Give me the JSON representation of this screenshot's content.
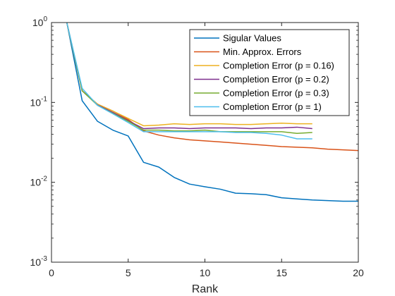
{
  "chart_data": {
    "type": "line",
    "title": "",
    "xlabel": "Rank",
    "ylabel": "",
    "xlim": [
      0,
      20
    ],
    "ylim": [
      0.001,
      1
    ],
    "yscale": "log",
    "grid": false,
    "legend_position": "top-right",
    "x_ticks": [
      0,
      5,
      10,
      15,
      20
    ],
    "y_ticks": [
      {
        "value": 0.001,
        "base": "10",
        "exp": "-3"
      },
      {
        "value": 0.01,
        "base": "10",
        "exp": "-2"
      },
      {
        "value": 0.1,
        "base": "10",
        "exp": "-1"
      },
      {
        "value": 1,
        "base": "10",
        "exp": "0"
      }
    ],
    "series": [
      {
        "name": "Sigular Values",
        "color": "#0072BD",
        "x": [
          1,
          2,
          3,
          4,
          5,
          6,
          7,
          8,
          9,
          10,
          11,
          12,
          13,
          14,
          15,
          16,
          17,
          18,
          19,
          20
        ],
        "y": [
          1.0,
          0.105,
          0.058,
          0.045,
          0.038,
          0.0178,
          0.0155,
          0.0115,
          0.0095,
          0.0088,
          0.0082,
          0.0073,
          0.0072,
          0.007,
          0.0064,
          0.0062,
          0.006,
          0.0059,
          0.0058,
          0.0058
        ]
      },
      {
        "name": "Min. Approx. Errors",
        "color": "#D95319",
        "x": [
          1,
          2,
          3,
          4,
          5,
          6,
          7,
          8,
          9,
          10,
          11,
          12,
          13,
          14,
          15,
          16,
          17,
          18,
          19,
          20
        ],
        "y": [
          1.0,
          0.14,
          0.095,
          0.078,
          0.061,
          0.044,
          0.039,
          0.036,
          0.034,
          0.033,
          0.032,
          0.031,
          0.03,
          0.029,
          0.028,
          0.0275,
          0.027,
          0.026,
          0.0255,
          0.025
        ]
      },
      {
        "name": "Completion Error (p = 0.16)",
        "color": "#EDB120",
        "x": [
          1,
          2,
          3,
          4,
          5,
          6,
          7,
          8,
          9,
          10,
          11,
          12,
          13,
          14,
          15,
          16,
          17
        ],
        "y": [
          1.0,
          0.14,
          0.095,
          0.078,
          0.063,
          0.051,
          0.052,
          0.054,
          0.053,
          0.054,
          0.054,
          0.053,
          0.053,
          0.054,
          0.055,
          0.054,
          0.054
        ]
      },
      {
        "name": "Completion Error (p = 0.2)",
        "color": "#7E2F8E",
        "x": [
          1,
          2,
          3,
          4,
          5,
          6,
          7,
          8,
          9,
          10,
          11,
          12,
          13,
          14,
          15,
          16,
          17
        ],
        "y": [
          1.0,
          0.14,
          0.093,
          0.075,
          0.059,
          0.047,
          0.048,
          0.048,
          0.047,
          0.048,
          0.048,
          0.048,
          0.047,
          0.048,
          0.048,
          0.049,
          0.047
        ]
      },
      {
        "name": "Completion Error (p = 0.3)",
        "color": "#77AC30",
        "x": [
          1,
          2,
          3,
          4,
          5,
          6,
          7,
          8,
          9,
          10,
          11,
          12,
          13,
          14,
          15,
          16,
          17
        ],
        "y": [
          1.0,
          0.14,
          0.092,
          0.073,
          0.058,
          0.045,
          0.045,
          0.044,
          0.044,
          0.045,
          0.043,
          0.043,
          0.043,
          0.043,
          0.043,
          0.041,
          0.042
        ]
      },
      {
        "name": "Completion Error (p = 1)",
        "color": "#4DBEEE",
        "x": [
          1,
          2,
          3,
          4,
          5,
          6,
          7,
          8,
          9,
          10,
          11,
          12,
          13,
          14,
          15,
          16,
          17
        ],
        "y": [
          1.0,
          0.15,
          0.092,
          0.072,
          0.056,
          0.043,
          0.043,
          0.043,
          0.043,
          0.043,
          0.043,
          0.042,
          0.042,
          0.041,
          0.039,
          0.035,
          0.035
        ]
      }
    ]
  }
}
